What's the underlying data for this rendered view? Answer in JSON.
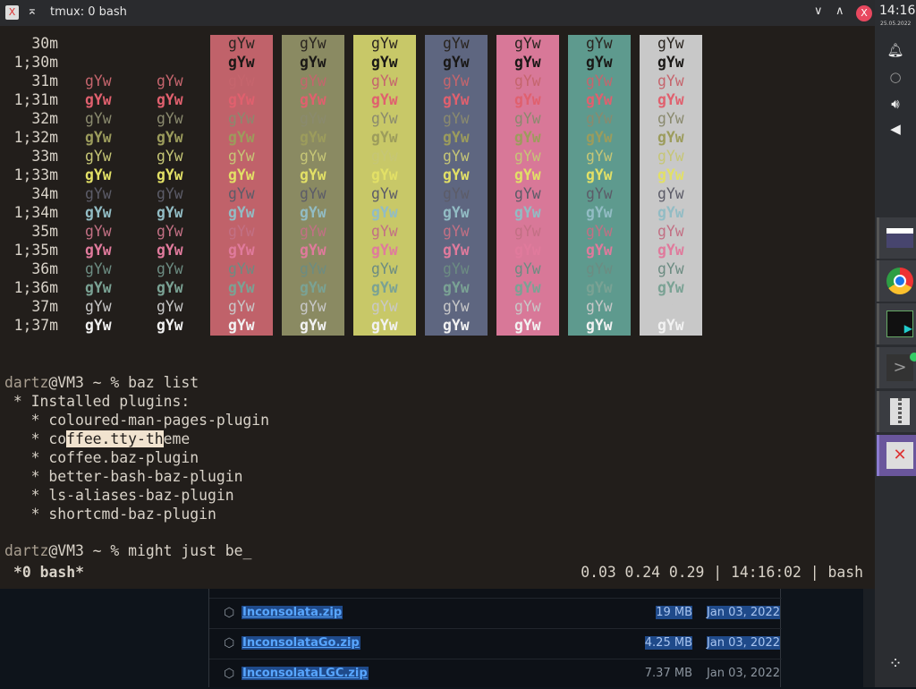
{
  "window": {
    "title": "tmux: 0 bash",
    "close_glyph": "X",
    "app_glyph": "X"
  },
  "matrix": {
    "sample": "gYw",
    "rows": [
      {
        "label": "30m",
        "fg": "#2a2520",
        "bold": false,
        "show_default": false
      },
      {
        "label": "1;30m",
        "fg": "#1a1816",
        "bold": true,
        "show_default": false
      },
      {
        "label": "31m",
        "fg": "#c5656d",
        "bold": false,
        "show_default": true
      },
      {
        "label": "1;31m",
        "fg": "#e0606e",
        "bold": true,
        "show_default": true
      },
      {
        "label": "32m",
        "fg": "#8a8a6e",
        "bold": false,
        "show_default": true
      },
      {
        "label": "1;32m",
        "fg": "#9c9c5c",
        "bold": true,
        "show_default": true
      },
      {
        "label": "33m",
        "fg": "#c6c676",
        "bold": false,
        "show_default": true
      },
      {
        "label": "1;33m",
        "fg": "#e2e066",
        "bold": true,
        "show_default": true
      },
      {
        "label": "34m",
        "fg": "#5c5c68",
        "bold": false,
        "show_default": true
      },
      {
        "label": "1;34m",
        "fg": "#92bcc4",
        "bold": true,
        "show_default": true
      },
      {
        "label": "35m",
        "fg": "#c27084",
        "bold": false,
        "show_default": true
      },
      {
        "label": "1;35m",
        "fg": "#e07a9c",
        "bold": true,
        "show_default": true
      },
      {
        "label": "36m",
        "fg": "#6c8c82",
        "bold": false,
        "show_default": true
      },
      {
        "label": "1;36m",
        "fg": "#7aa294",
        "bold": true,
        "show_default": true
      },
      {
        "label": "37m",
        "fg": "#c8c8c8",
        "bold": false,
        "show_default": true
      },
      {
        "label": "1;37m",
        "fg": "#f2f2f2",
        "bold": true,
        "show_default": true
      }
    ],
    "backgrounds": [
      "#c0626a",
      "#8a8a62",
      "#c8c868",
      "#5e6680",
      "#d87898",
      "#5e9a8e",
      "#c8c8c8"
    ]
  },
  "terminal": {
    "prompt_user": "dartz",
    "prompt_rest": "@VM3 ~ % ",
    "command1": "baz list",
    "output": [
      " * Installed plugins:",
      "   * coloured-man-pages-plugin"
    ],
    "sel_line": {
      "pre": "   * co",
      "sel": "ffee.tty-th",
      "post": "eme"
    },
    "output2": [
      "   * coffee.baz-plugin",
      "   * better-bash-baz-plugin",
      "   * ls-aliases-baz-plugin",
      "   * shortcmd-baz-plugin"
    ],
    "command2": "might just be_",
    "status_left": "*0 bash*",
    "status_right": "0.03 0.24 0.29 | 14:16:02 | bash"
  },
  "files": [
    {
      "name": "Inconsolata.zip",
      "size": "19 MB",
      "date": "Jan 03, 2022",
      "selected": true
    },
    {
      "name": "InconsolataGo.zip",
      "size": "4.25 MB",
      "date": "Jan 03, 2022",
      "selected": true
    },
    {
      "name": "InconsolataLGC.zip",
      "size": "7.37 MB",
      "date": "Jan 03, 2022",
      "selected": false
    }
  ],
  "panel": {
    "time": "14:16",
    "date": "25.05.2022"
  }
}
